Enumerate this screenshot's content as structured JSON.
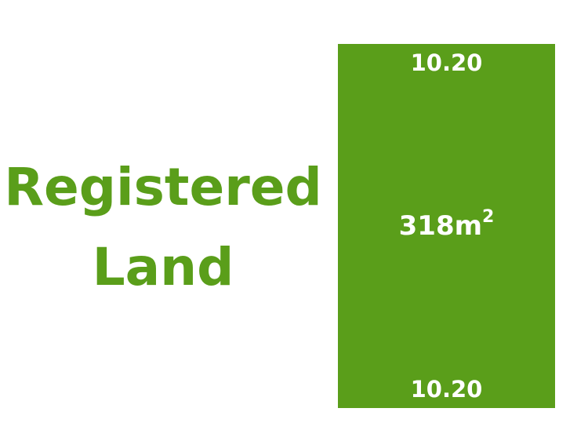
{
  "heading": {
    "line1": "Registered",
    "line2": "Land"
  },
  "lot": {
    "frontage_top": "10.20",
    "frontage_bottom": "10.20",
    "area_value": "318m",
    "area_unit_exponent": "2",
    "fill_color": "#5a9e1a"
  }
}
